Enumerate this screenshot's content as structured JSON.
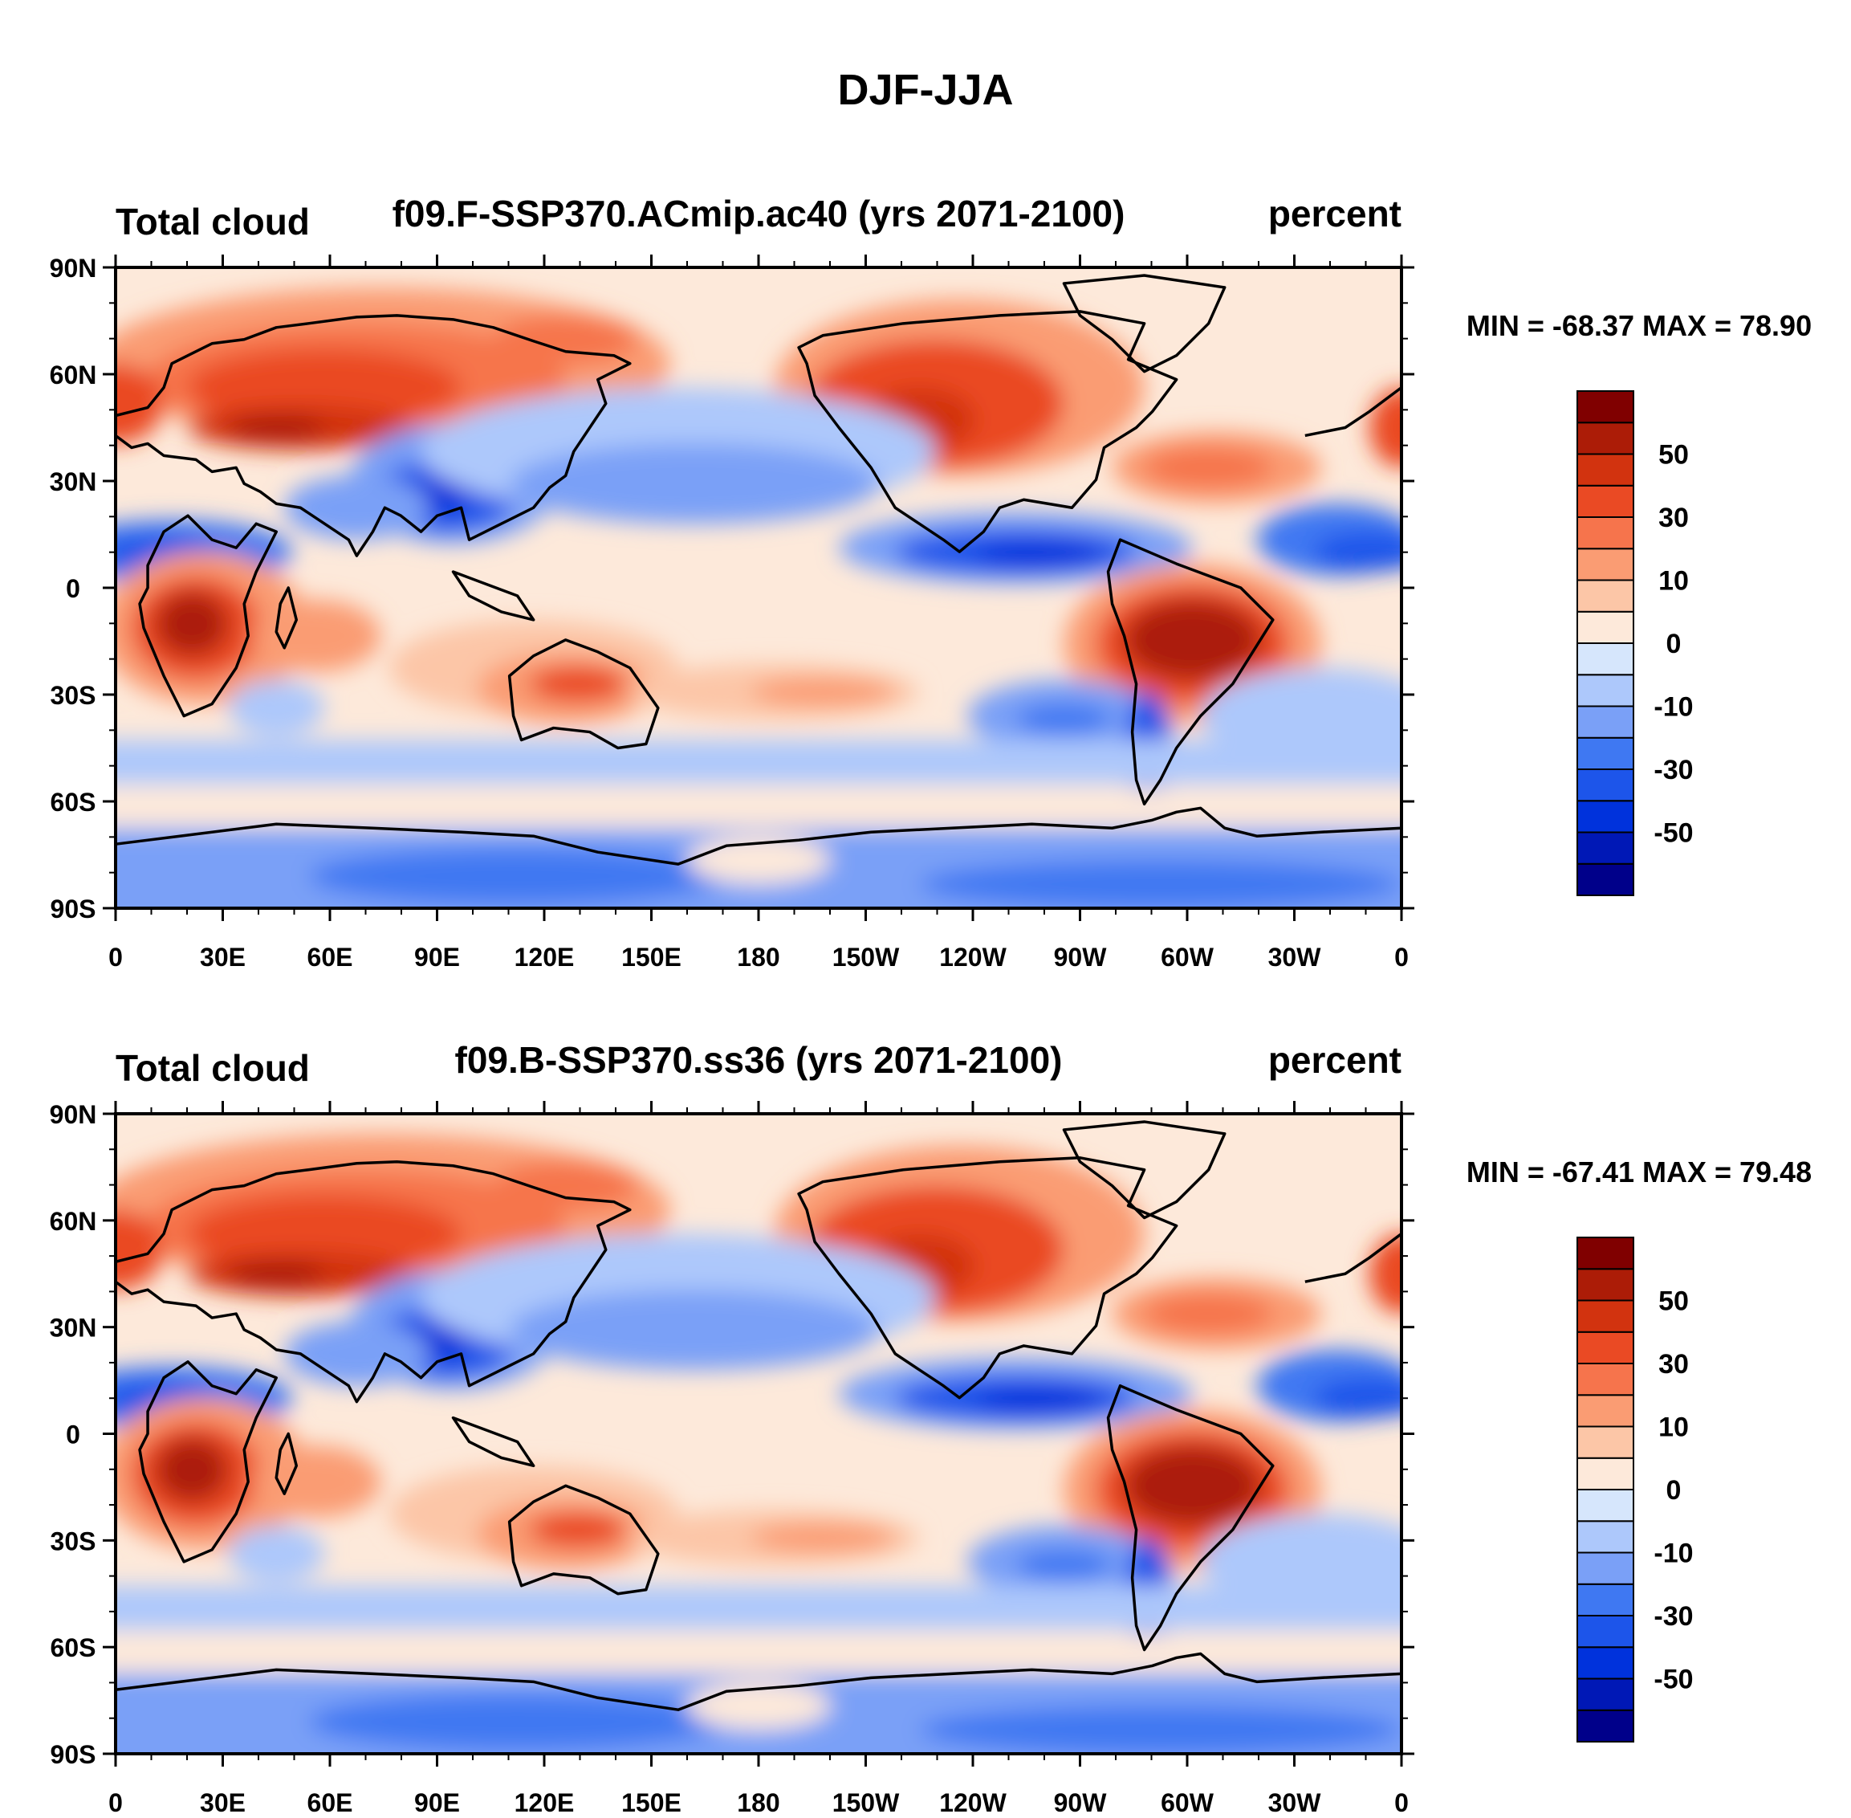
{
  "title": "DJF-JJA",
  "lat_ticks": [
    "90N",
    "60N",
    "30N",
    "0",
    "30S",
    "60S",
    "90S"
  ],
  "lon_ticks": [
    "0",
    "30E",
    "60E",
    "90E",
    "120E",
    "150E",
    "180",
    "150W",
    "120W",
    "90W",
    "60W",
    "30W",
    "0"
  ],
  "colorbar": {
    "colors": [
      "#00008a",
      "#0018b6",
      "#0032dc",
      "#1d55ea",
      "#3f78f2",
      "#7aa0f7",
      "#adc8fb",
      "#d6e6fc",
      "#fde9da",
      "#fcc6a7",
      "#fa9c73",
      "#f6744c",
      "#ea4a24",
      "#d2330f",
      "#ac1c07",
      "#800000"
    ],
    "labels": [
      "-50",
      "-30",
      "-10",
      "0",
      "10",
      "30",
      "50"
    ]
  },
  "panels": [
    {
      "id": "top",
      "left_string": "Total cloud",
      "center_string": "f09.F-SSP370.ACmip.ac40 (yrs 2071-2100)",
      "right_string": "percent",
      "stats": "MIN = -68.37 MAX =  78.90",
      "min": -68.37,
      "max": 78.9
    },
    {
      "id": "bottom",
      "left_string": "Total cloud",
      "center_string": "f09.B-SSP370.ss36 (yrs 2071-2100)",
      "right_string": "percent",
      "stats": "MIN = -67.41 MAX =  79.48",
      "min": -67.41,
      "max": 79.48
    }
  ]
}
